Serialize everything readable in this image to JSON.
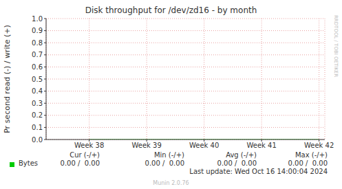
{
  "chart_data": {
    "type": "line",
    "title": "Disk throughput for /dev/zd16 - by month",
    "y_label": "Pr second read (-) / write (+)",
    "x": [
      38,
      39,
      40,
      41,
      42
    ],
    "series": [
      {
        "name": "Bytes",
        "color": "#00cc00",
        "values": [
          0,
          0,
          0,
          0,
          0
        ]
      }
    ],
    "xlim": [
      37.25,
      42.1
    ],
    "xticks": [
      {
        "value": 38,
        "label": "Week 38"
      },
      {
        "value": 39,
        "label": "Week 39"
      },
      {
        "value": 40,
        "label": "Week 40"
      },
      {
        "value": 41,
        "label": "Week 41"
      },
      {
        "value": 42,
        "label": "Week 42"
      }
    ],
    "ylim": [
      0,
      1
    ],
    "yticks": [
      {
        "value": 0,
        "label": "0.0"
      },
      0.1,
      0.2,
      0.3,
      0.4,
      0.5,
      0.6,
      0.7,
      0.8,
      0.9,
      {
        "value": 1,
        "label": "1.0"
      }
    ],
    "grid": true,
    "stats": {
      "headers": [
        "Cur (-/+)",
        "Min (-/+)",
        "Avg (-/+)",
        "Max (-/+)"
      ],
      "values": [
        "0.00 /  0.00",
        "0.00 /  0.00",
        "0.00 /  0.00",
        "0.00 /  0.00"
      ]
    },
    "last_update": "Last update: Wed Oct 16 14:00:04 2024",
    "footer": "Munin 2.0.76",
    "watermark": "RRDTOOL / TOBI OETIKER"
  }
}
